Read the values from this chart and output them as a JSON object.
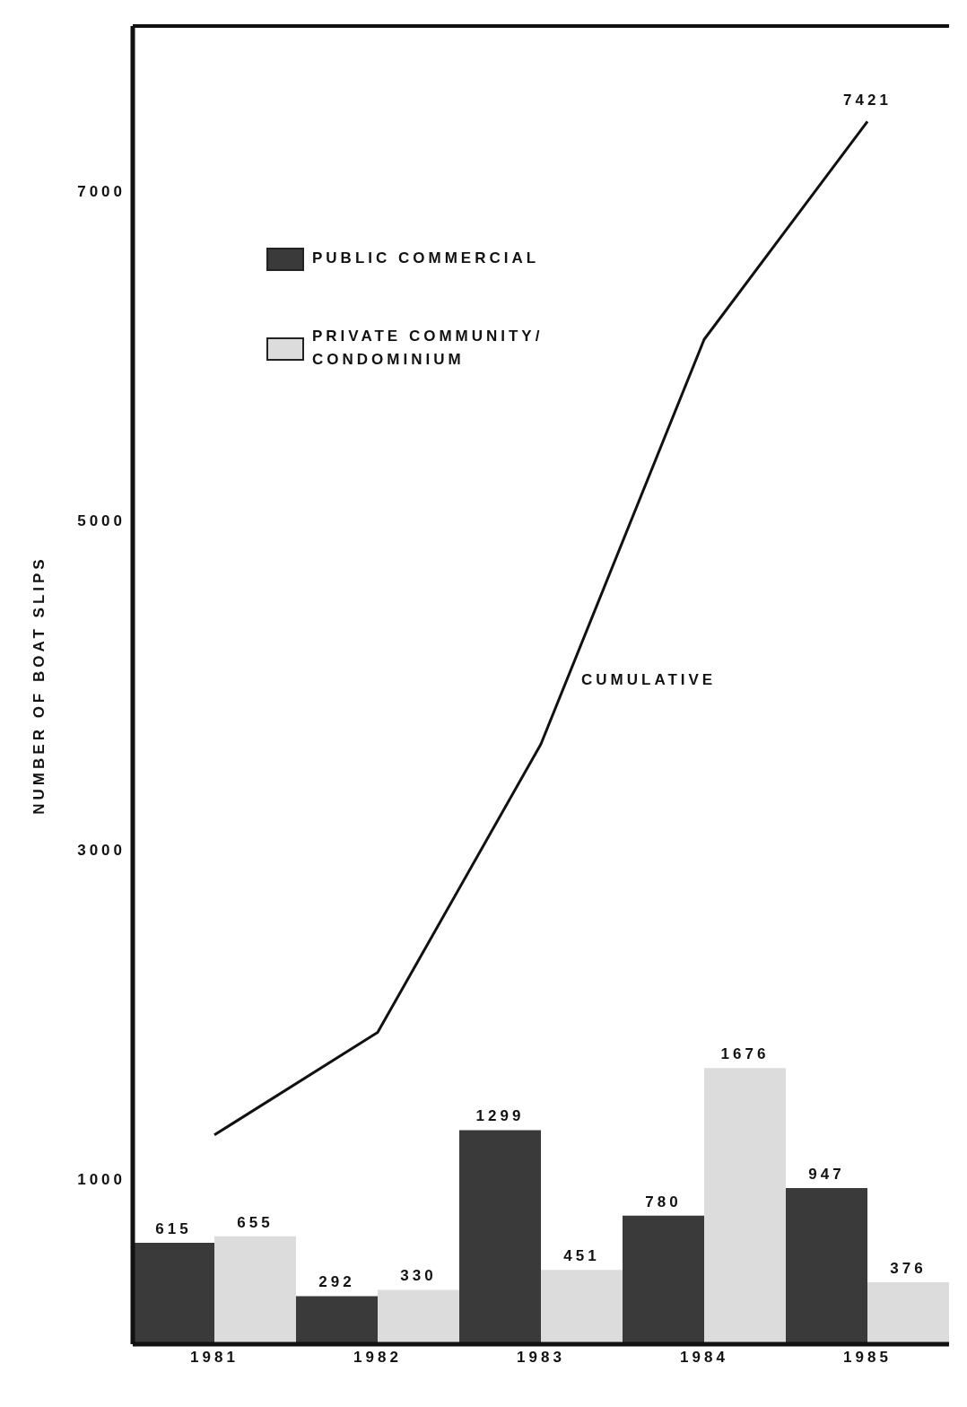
{
  "chart_data": {
    "type": "bar",
    "ylabel": "NUMBER OF BOAT SLIPS",
    "categories": [
      "1981",
      "1982",
      "1983",
      "1984",
      "1985"
    ],
    "series": [
      {
        "name": "PUBLIC COMMERCIAL",
        "color": "#3a3a3a",
        "values": [
          615,
          292,
          1299,
          780,
          947
        ]
      },
      {
        "name": "PRIVATE COMMUNITY/ CONDOMINIUM",
        "color": "#dcdcdc",
        "values": [
          655,
          330,
          451,
          1676,
          376
        ]
      },
      {
        "name": "CUMULATIVE",
        "type": "line",
        "color": "#111111",
        "values": [
          1270,
          1892,
          3642,
          6098,
          7421
        ],
        "value_labels": [
          null,
          null,
          null,
          null,
          "7421"
        ]
      }
    ],
    "data_labels": true,
    "ylim": [
      0,
      8000
    ],
    "yticks": [
      1000,
      3000,
      5000,
      7000
    ],
    "grid": false,
    "legend": "top left",
    "marker": "none",
    "line_style": "solid"
  }
}
